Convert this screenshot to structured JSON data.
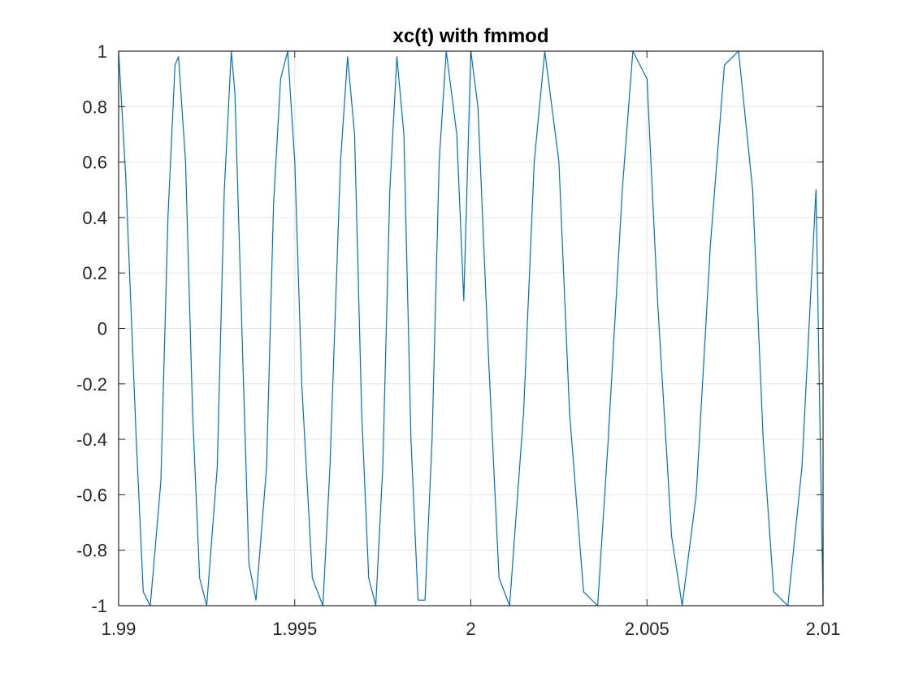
{
  "chart_data": {
    "type": "line",
    "title": "xc(t) with fmmod",
    "xlabel": "",
    "ylabel": "",
    "xlim": [
      1.99,
      2.01
    ],
    "ylim": [
      -1,
      1
    ],
    "grid": true,
    "xticks": [
      "1.99",
      "1.995",
      "2",
      "2.005",
      "2.01"
    ],
    "yticks": [
      "-1",
      "-0.8",
      "-0.6",
      "-0.4",
      "-0.2",
      "0",
      "0.2",
      "0.4",
      "0.6",
      "0.8",
      "1"
    ],
    "colors": {
      "line": "#0072BD",
      "grid": "#e6e6e6",
      "axes": "#262626"
    },
    "series": [
      {
        "x": [
          1.99,
          1.9902,
          1.9905,
          1.9907,
          1.9909,
          1.9912,
          1.9914,
          1.9916,
          1.9917,
          1.9919,
          1.9921,
          1.9923,
          1.9925,
          1.9928,
          1.993,
          1.9932,
          1.9933,
          1.9935,
          1.9937,
          1.9939,
          1.9942,
          1.9944,
          1.9946,
          1.9948,
          1.995,
          1.9952,
          1.9955,
          1.9958,
          1.996,
          1.9963,
          1.9965,
          1.9967,
          1.9969,
          1.9971,
          1.9973,
          1.9975,
          1.9977,
          1.9979,
          1.9981,
          1.9983,
          1.9985,
          1.9987,
          1.9989,
          1.9991,
          1.9993,
          1.9996,
          1.9998,
          2.0,
          2.0002,
          2.0005,
          2.0008,
          2.0011,
          2.0015,
          2.0018,
          2.0021,
          2.0025,
          2.0028,
          2.0032,
          2.0036,
          2.0039,
          2.0043,
          2.0046,
          2.005,
          2.0053,
          2.0057,
          2.006,
          2.0064,
          2.0068,
          2.0072,
          2.0076,
          2.008,
          2.0083,
          2.0086,
          2.009,
          2.0094,
          2.0098,
          2.01
        ],
        "y": [
          1,
          0.55,
          -0.4,
          -0.95,
          -1,
          -0.55,
          0.4,
          0.95,
          0.98,
          0.6,
          -0.3,
          -0.9,
          -1,
          -0.5,
          0.5,
          1,
          0.85,
          0,
          -0.85,
          -0.98,
          -0.5,
          0.45,
          0.9,
          1,
          0.6,
          -0.2,
          -0.9,
          -1,
          -0.5,
          0.6,
          0.98,
          0.7,
          -0.3,
          -0.9,
          -1,
          -0.5,
          0.5,
          0.98,
          0.7,
          -0.4,
          -0.98,
          -0.98,
          -0.4,
          0.6,
          1,
          0.7,
          0.1,
          1,
          0.8,
          -0.1,
          -0.9,
          -1,
          -0.3,
          0.6,
          1,
          0.6,
          -0.3,
          -0.95,
          -1,
          -0.4,
          0.5,
          1,
          0.9,
          0.1,
          -0.75,
          -1,
          -0.6,
          0.3,
          0.95,
          1,
          0.5,
          -0.4,
          -0.95,
          -1,
          -0.5,
          0.5,
          -1
        ]
      }
    ]
  }
}
